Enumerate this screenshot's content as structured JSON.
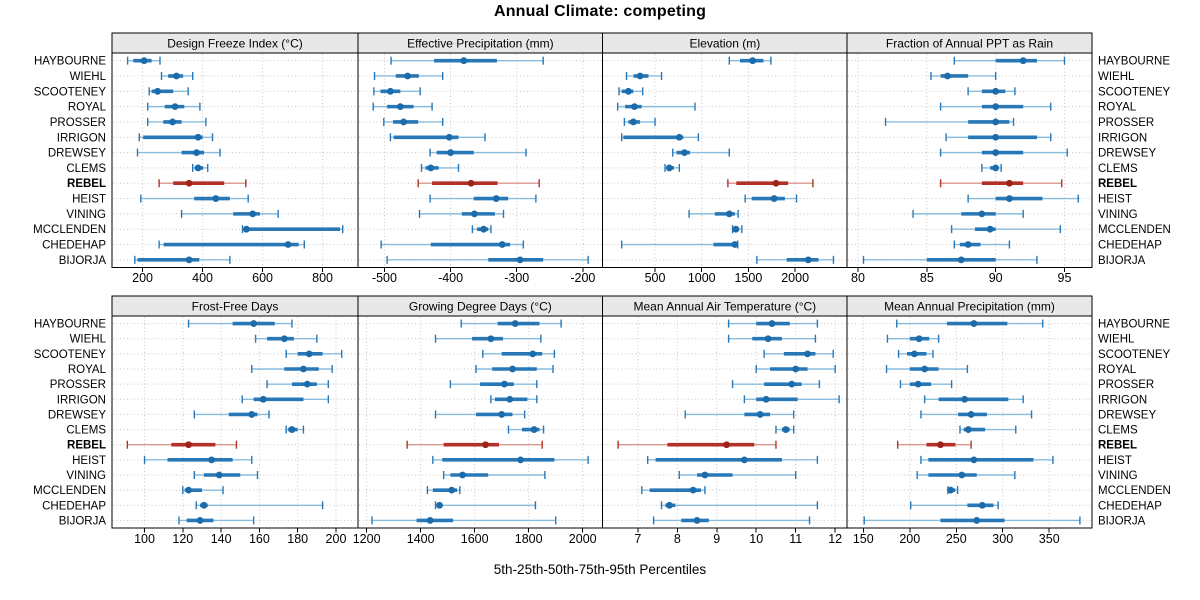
{
  "chart_data": {
    "type": "scatter",
    "variant": "trellis-percentile-dotplot",
    "title": "Annual Climate: competing",
    "caption": "5th-25th-50th-75th-95th Percentiles",
    "legend": "none",
    "grid": "dotted",
    "sites": [
      "HAYBOURNE",
      "WIEHL",
      "SCOOTENEY",
      "ROYAL",
      "PROSSER",
      "IRRIGON",
      "DREWSEY",
      "CLEMS",
      "REBEL",
      "HEIST",
      "VINING",
      "MCCLENDEN",
      "CHEDEHAP",
      "BIJORJA"
    ],
    "highlighted_site": "REBEL",
    "percentile_labels": [
      "5th",
      "25th",
      "50th",
      "75th",
      "95th"
    ],
    "style": {
      "blue_main": "#2878b8",
      "blue_light": "#88bcdd",
      "blue_dot": "#1c6cab",
      "red_main": "#b23228",
      "red_light": "#da968f",
      "red_dot": "#9f2318",
      "strip_bg": "#e8e8e8",
      "panel_border": "#000000",
      "grid_color": "#c8c8c8",
      "text_color": "#000000"
    },
    "panels": [
      {
        "title": "Design Freeze Index (°C)",
        "ticks": [
          200,
          400,
          600,
          800
        ],
        "range": [
          98,
          918
        ],
        "values": [
          [
            150,
            169,
            205,
            230,
            258
          ],
          [
            263,
            285,
            313,
            335,
            367
          ],
          [
            222,
            230,
            250,
            302,
            352
          ],
          [
            217,
            274,
            308,
            339,
            391
          ],
          [
            217,
            269,
            300,
            330,
            411
          ],
          [
            189,
            202,
            385,
            400,
            433
          ],
          [
            183,
            330,
            380,
            405,
            458
          ],
          [
            367,
            374,
            385,
            402,
            417
          ],
          [
            255,
            302,
            355,
            472,
            544
          ],
          [
            194,
            372,
            444,
            491,
            552
          ],
          [
            330,
            502,
            567,
            591,
            652
          ],
          [
            533,
            540,
            546,
            858,
            867
          ],
          [
            255,
            270,
            685,
            720,
            739
          ],
          [
            174,
            183,
            355,
            389,
            491
          ]
        ]
      },
      {
        "title": "Effective Precipitation (mm)",
        "ticks": [
          -500,
          -400,
          -300,
          -200
        ],
        "range": [
          -540,
          -170
        ],
        "values": [
          [
            -490,
            -425,
            -380,
            -330,
            -260
          ],
          [
            -515,
            -483,
            -465,
            -448,
            -412
          ],
          [
            -516,
            -506,
            -491,
            -476,
            -446
          ],
          [
            -517,
            -496,
            -476,
            -456,
            -428
          ],
          [
            -501,
            -487,
            -471,
            -449,
            -412
          ],
          [
            -491,
            -486,
            -402,
            -388,
            -348
          ],
          [
            -431,
            -421,
            -400,
            -365,
            -286
          ],
          [
            -444,
            -438,
            -430,
            -418,
            -388
          ],
          [
            -449,
            -428,
            -369,
            -329,
            -266
          ],
          [
            -431,
            -365,
            -331,
            -313,
            -271
          ],
          [
            -447,
            -383,
            -364,
            -333,
            -320
          ],
          [
            -367,
            -360,
            -350,
            -343,
            -339
          ],
          [
            -505,
            -430,
            -322,
            -310,
            -290
          ],
          [
            -496,
            -343,
            -295,
            -260,
            -192
          ]
        ]
      },
      {
        "title": "Elevation (m)",
        "ticks": [
          500,
          1000,
          1500,
          2000
        ],
        "range": [
          -60,
          2555
        ],
        "values": [
          [
            1295,
            1410,
            1545,
            1660,
            1740
          ],
          [
            195,
            270,
            340,
            430,
            570
          ],
          [
            115,
            143,
            215,
            268,
            368
          ],
          [
            100,
            180,
            280,
            357,
            928
          ],
          [
            172,
            215,
            268,
            340,
            500
          ],
          [
            143,
            161,
            760,
            803,
            964
          ],
          [
            690,
            730,
            815,
            875,
            1295
          ],
          [
            607,
            625,
            653,
            703,
            760
          ],
          [
            1280,
            1370,
            1795,
            1925,
            2190
          ],
          [
            1465,
            1535,
            1775,
            1890,
            2015
          ],
          [
            865,
            1140,
            1295,
            1355,
            1390
          ],
          [
            1330,
            1345,
            1365,
            1400,
            1430
          ],
          [
            143,
            1125,
            1355,
            1375,
            1385
          ],
          [
            1590,
            1910,
            2140,
            2250,
            2410
          ]
        ]
      },
      {
        "title": "Fraction of Annual PPT as Rain",
        "ticks": [
          80,
          85,
          90,
          95
        ],
        "range": [
          79.2,
          97.0
        ],
        "values": [
          [
            87,
            90,
            92,
            93,
            95
          ],
          [
            85.3,
            86,
            86.5,
            88,
            90
          ],
          [
            88,
            89,
            90,
            90.7,
            91.4
          ],
          [
            86,
            89,
            90,
            92,
            94
          ],
          [
            82,
            88,
            90,
            91,
            91.3
          ],
          [
            86.4,
            88,
            90,
            93,
            94
          ],
          [
            86,
            89,
            90,
            92,
            95.2
          ],
          [
            89,
            89.6,
            90,
            90.2,
            90.4
          ],
          [
            86,
            89,
            91,
            92,
            94.8
          ],
          [
            88,
            90,
            91,
            93.4,
            96
          ],
          [
            84,
            87.5,
            89,
            90,
            92
          ],
          [
            86.8,
            88.5,
            89.6,
            90,
            94.7
          ],
          [
            87,
            87.4,
            88,
            88.9,
            91
          ],
          [
            80.4,
            85,
            87.5,
            90,
            93
          ]
        ]
      },
      {
        "title": "Frost-Free Days",
        "ticks": [
          100,
          120,
          140,
          160,
          180,
          200
        ],
        "range": [
          83,
          211.5
        ],
        "values": [
          [
            123,
            146,
            157,
            168,
            177
          ],
          [
            158,
            164,
            173,
            178,
            190
          ],
          [
            174,
            180,
            186,
            193,
            203
          ],
          [
            156,
            173,
            183,
            191,
            198
          ],
          [
            164,
            177,
            185,
            190,
            196
          ],
          [
            151,
            157,
            162,
            183,
            196
          ],
          [
            126,
            144,
            156,
            159,
            165
          ],
          [
            174,
            175,
            177,
            180,
            183
          ],
          [
            91,
            114,
            123,
            137,
            148
          ],
          [
            100,
            112,
            135,
            146,
            156
          ],
          [
            126,
            131,
            139,
            150,
            159
          ],
          [
            120,
            121,
            123,
            130,
            141
          ],
          [
            127,
            129,
            131,
            133,
            193
          ],
          [
            118,
            122,
            129,
            136,
            157
          ]
        ]
      },
      {
        "title": "Growing Degree Days (°C)",
        "ticks": [
          1200,
          1400,
          1600,
          1800,
          2000
        ],
        "range": [
          1168,
          2074
        ],
        "values": [
          [
            1550,
            1685,
            1750,
            1840,
            1920
          ],
          [
            1455,
            1590,
            1660,
            1705,
            1845
          ],
          [
            1630,
            1700,
            1815,
            1850,
            1895
          ],
          [
            1605,
            1665,
            1740,
            1830,
            1890
          ],
          [
            1510,
            1620,
            1710,
            1745,
            1830
          ],
          [
            1660,
            1675,
            1730,
            1795,
            1830
          ],
          [
            1455,
            1605,
            1700,
            1740,
            1785
          ],
          [
            1725,
            1775,
            1820,
            1840,
            1855
          ],
          [
            1350,
            1485,
            1640,
            1690,
            1850
          ],
          [
            1445,
            1480,
            1770,
            1895,
            2020
          ],
          [
            1485,
            1510,
            1555,
            1650,
            1860
          ],
          [
            1425,
            1445,
            1515,
            1535,
            1545
          ],
          [
            1455,
            1460,
            1470,
            1475,
            1825
          ],
          [
            1220,
            1385,
            1435,
            1520,
            1900
          ]
        ]
      },
      {
        "title": "Mean Annual Air Temperature (°C)",
        "ticks": [
          7,
          8,
          9,
          10,
          11,
          12
        ],
        "range": [
          6.11,
          12.3
        ],
        "values": [
          [
            9.3,
            10.0,
            10.4,
            10.85,
            11.55
          ],
          [
            9.3,
            9.9,
            10.3,
            10.65,
            11.5
          ],
          [
            10.2,
            10.7,
            11.3,
            11.5,
            11.95
          ],
          [
            10.0,
            10.35,
            11.0,
            11.3,
            12.0
          ],
          [
            9.4,
            10.2,
            10.9,
            11.15,
            11.6
          ],
          [
            9.7,
            10.0,
            10.25,
            11.05,
            12.1
          ],
          [
            8.2,
            9.7,
            10.1,
            10.35,
            10.95
          ],
          [
            10.5,
            10.65,
            10.75,
            10.85,
            10.95
          ],
          [
            6.5,
            7.75,
            9.25,
            9.95,
            10.5
          ],
          [
            7.25,
            7.45,
            9.7,
            10.65,
            11.55
          ],
          [
            8.05,
            8.5,
            8.7,
            9.4,
            11.0
          ],
          [
            7.1,
            7.3,
            8.4,
            8.6,
            8.7
          ],
          [
            7.6,
            7.7,
            7.8,
            7.95,
            11.55
          ],
          [
            7.4,
            8.1,
            8.5,
            8.8,
            11.35
          ]
        ]
      },
      {
        "title": "Mean Annual Precipitation (mm)",
        "ticks": [
          150,
          200,
          250,
          300,
          350
        ],
        "range": [
          132.5,
          396
        ],
        "values": [
          [
            186,
            240,
            269,
            305,
            343
          ],
          [
            176,
            200,
            210,
            221,
            231
          ],
          [
            188,
            197,
            205,
            218,
            225
          ],
          [
            175,
            200,
            216,
            231,
            262
          ],
          [
            190,
            200,
            209,
            223,
            245
          ],
          [
            216,
            231,
            259,
            306,
            322
          ],
          [
            212,
            252,
            266,
            283,
            331
          ],
          [
            254,
            258,
            263,
            281,
            314
          ],
          [
            187,
            218,
            233,
            249,
            266
          ],
          [
            212,
            220,
            269,
            333,
            354
          ],
          [
            208,
            220,
            256,
            272,
            313
          ],
          [
            241,
            242.5,
            244,
            249,
            251.5
          ],
          [
            201,
            262,
            278,
            290,
            295
          ],
          [
            151,
            233,
            272,
            302,
            383
          ]
        ]
      }
    ]
  }
}
